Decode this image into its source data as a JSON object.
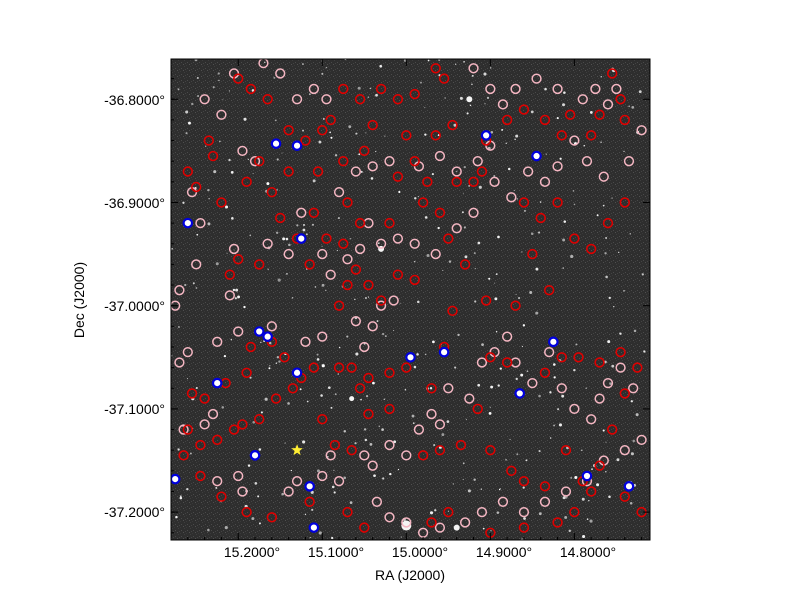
{
  "plot": {
    "x_axis_label": "RA (J2000)",
    "y_axis_label": "Dec (J2000)",
    "x_ticks": [
      {
        "value": 15.2,
        "label": "15.2000°"
      },
      {
        "value": 15.1,
        "label": "15.1000°"
      },
      {
        "value": 15.0,
        "label": "15.0000°"
      },
      {
        "value": 14.9,
        "label": "14.9000°"
      },
      {
        "value": 14.8,
        "label": "14.8000°"
      }
    ],
    "y_ticks": [
      {
        "value": -36.8,
        "label": "-36.8000°"
      },
      {
        "value": -36.9,
        "label": "-36.9000°"
      },
      {
        "value": -37.0,
        "label": "-37.0000°"
      },
      {
        "value": -37.1,
        "label": "-37.1000°"
      },
      {
        "value": -37.2,
        "label": "-37.2000°"
      }
    ],
    "x_range": [
      15.28,
      14.71
    ],
    "y_range": [
      -37.227,
      -36.761
    ]
  },
  "colors": {
    "sky_background": "#2b2b2b",
    "marker_red": "#dd0000",
    "marker_pink": "#f4b6c2",
    "marker_blue": "#0000dd",
    "marker_yellow": "#ffee33"
  },
  "markers": {
    "red": [
      [
        15.235,
        -36.84
      ],
      [
        15.23,
        -36.855
      ],
      [
        15.22,
        -36.9
      ],
      [
        15.25,
        -36.885
      ],
      [
        15.21,
        -36.97
      ],
      [
        15.19,
        -36.88
      ],
      [
        15.175,
        -36.86
      ],
      [
        15.16,
        -36.89
      ],
      [
        15.14,
        -36.87
      ],
      [
        15.13,
        -36.935
      ],
      [
        15.11,
        -36.91
      ],
      [
        15.115,
        -36.96
      ],
      [
        15.095,
        -36.935
      ],
      [
        15.075,
        -36.94
      ],
      [
        15.06,
        -36.965
      ],
      [
        15.07,
        -36.98
      ],
      [
        15.045,
        -36.98
      ],
      [
        15.08,
        -37.0
      ],
      [
        15.03,
        -36.995
      ],
      [
        15.01,
        -36.97
      ],
      [
        14.99,
        -36.975
      ],
      [
        15.055,
        -36.92
      ],
      [
        15.02,
        -36.92
      ],
      [
        14.98,
        -36.9
      ],
      [
        14.96,
        -36.91
      ],
      [
        14.94,
        -36.88
      ],
      [
        14.92,
        -36.88
      ],
      [
        14.91,
        -36.87
      ],
      [
        14.95,
        -36.935
      ],
      [
        14.93,
        -36.96
      ],
      [
        14.86,
        -36.9
      ],
      [
        14.84,
        -36.915
      ],
      [
        14.82,
        -36.9
      ],
      [
        14.8,
        -36.935
      ],
      [
        14.78,
        -36.945
      ],
      [
        14.76,
        -36.92
      ],
      [
        14.74,
        -36.9
      ],
      [
        14.85,
        -36.95
      ],
      [
        14.83,
        -36.985
      ],
      [
        14.905,
        -36.995
      ],
      [
        14.87,
        -37.0
      ],
      [
        14.945,
        -37.005
      ],
      [
        14.955,
        -37.04
      ],
      [
        14.97,
        -37.08
      ],
      [
        15.0,
        -37.06
      ],
      [
        15.02,
        -37.065
      ],
      [
        15.045,
        -37.07
      ],
      [
        15.055,
        -37.08
      ],
      [
        15.065,
        -37.06
      ],
      [
        15.08,
        -37.06
      ],
      [
        15.11,
        -37.06
      ],
      [
        15.125,
        -37.07
      ],
      [
        15.135,
        -37.08
      ],
      [
        15.155,
        -37.09
      ],
      [
        15.175,
        -37.11
      ],
      [
        15.195,
        -37.115
      ],
      [
        15.205,
        -37.12
      ],
      [
        15.225,
        -37.13
      ],
      [
        15.245,
        -37.135
      ],
      [
        15.26,
        -37.12
      ],
      [
        15.255,
        -37.085
      ],
      [
        15.24,
        -37.09
      ],
      [
        15.215,
        -37.075
      ],
      [
        15.19,
        -37.065
      ],
      [
        15.185,
        -37.04
      ],
      [
        15.16,
        -37.035
      ],
      [
        15.145,
        -37.05
      ],
      [
        15.1,
        -37.11
      ],
      [
        15.085,
        -37.135
      ],
      [
        15.065,
        -37.14
      ],
      [
        15.045,
        -37.105
      ],
      [
        15.02,
        -37.1
      ],
      [
        14.98,
        -37.145
      ],
      [
        14.96,
        -37.14
      ],
      [
        14.935,
        -37.135
      ],
      [
        14.915,
        -37.1
      ],
      [
        14.9,
        -37.14
      ],
      [
        14.875,
        -37.16
      ],
      [
        14.86,
        -37.17
      ],
      [
        14.835,
        -37.175
      ],
      [
        14.81,
        -37.14
      ],
      [
        14.79,
        -37.17
      ],
      [
        14.77,
        -37.155
      ],
      [
        14.755,
        -37.12
      ],
      [
        14.74,
        -37.085
      ],
      [
        14.725,
        -37.06
      ],
      [
        14.745,
        -37.045
      ],
      [
        14.77,
        -37.055
      ],
      [
        14.795,
        -37.05
      ],
      [
        14.815,
        -37.05
      ],
      [
        14.835,
        -37.065
      ],
      [
        14.88,
        -37.055
      ],
      [
        14.9,
        -37.05
      ],
      [
        14.72,
        -37.2
      ],
      [
        14.74,
        -37.185
      ],
      [
        14.78,
        -37.18
      ],
      [
        14.8,
        -37.2
      ],
      [
        14.82,
        -37.21
      ],
      [
        14.86,
        -37.215
      ],
      [
        14.9,
        -37.22
      ],
      [
        14.95,
        -37.2
      ],
      [
        14.97,
        -37.21
      ],
      [
        15.05,
        -37.215
      ],
      [
        15.07,
        -37.2
      ],
      [
        15.115,
        -37.19
      ],
      [
        15.16,
        -37.205
      ],
      [
        15.19,
        -37.2
      ],
      [
        15.22,
        -37.185
      ],
      [
        15.245,
        -37.165
      ],
      [
        15.265,
        -37.145
      ],
      [
        14.755,
        -36.775
      ],
      [
        14.74,
        -36.82
      ],
      [
        14.745,
        -36.8
      ],
      [
        14.77,
        -36.815
      ],
      [
        14.78,
        -36.835
      ],
      [
        14.805,
        -36.815
      ],
      [
        14.815,
        -36.835
      ],
      [
        14.835,
        -36.82
      ],
      [
        14.86,
        -36.81
      ],
      [
        14.88,
        -36.82
      ],
      [
        14.905,
        -36.84
      ],
      [
        14.945,
        -36.825
      ],
      [
        14.965,
        -36.835
      ],
      [
        15.0,
        -36.835
      ],
      [
        15.04,
        -36.825
      ],
      [
        15.055,
        -36.8
      ],
      [
        15.075,
        -36.79
      ],
      [
        15.09,
        -36.82
      ],
      [
        15.1,
        -36.83
      ],
      [
        15.12,
        -36.84
      ],
      [
        15.14,
        -36.83
      ],
      [
        15.165,
        -36.8
      ],
      [
        15.185,
        -36.79
      ],
      [
        15.2,
        -36.78
      ],
      [
        15.03,
        -36.79
      ],
      [
        15.01,
        -36.8
      ],
      [
        14.99,
        -36.795
      ],
      [
        14.965,
        -36.77
      ],
      [
        14.955,
        -36.78
      ],
      [
        15.105,
        -36.87
      ],
      [
        15.075,
        -36.86
      ],
      [
        15.05,
        -36.85
      ],
      [
        15.07,
        -36.9
      ],
      [
        15.01,
        -36.875
      ],
      [
        14.99,
        -36.86
      ],
      [
        14.975,
        -36.88
      ],
      [
        15.15,
        -36.915
      ],
      [
        15.175,
        -36.96
      ],
      [
        15.2,
        -36.955
      ],
      [
        15.26,
        -36.87
      ]
    ],
    "pink": [
      [
        15.24,
        -36.8
      ],
      [
        15.205,
        -36.775
      ],
      [
        15.22,
        -36.815
      ],
      [
        15.195,
        -36.85
      ],
      [
        15.18,
        -36.86
      ],
      [
        15.255,
        -36.89
      ],
      [
        15.245,
        -36.92
      ],
      [
        15.25,
        -36.96
      ],
      [
        15.205,
        -36.945
      ],
      [
        15.21,
        -36.99
      ],
      [
        15.165,
        -36.94
      ],
      [
        15.14,
        -36.95
      ],
      [
        15.125,
        -36.91
      ],
      [
        15.1,
        -36.95
      ],
      [
        15.09,
        -36.97
      ],
      [
        15.07,
        -36.955
      ],
      [
        15.055,
        -36.945
      ],
      [
        15.045,
        -36.92
      ],
      [
        15.04,
        -37.02
      ],
      [
        15.03,
        -37.0
      ],
      [
        15.015,
        -36.995
      ],
      [
        15.06,
        -37.015
      ],
      [
        15.05,
        -37.04
      ],
      [
        15.1,
        -37.03
      ],
      [
        15.12,
        -37.035
      ],
      [
        15.16,
        -37.02
      ],
      [
        15.2,
        -37.025
      ],
      [
        15.225,
        -37.035
      ],
      [
        15.26,
        -37.045
      ],
      [
        15.27,
        -37.055
      ],
      [
        15.275,
        -37.0
      ],
      [
        15.27,
        -36.985
      ],
      [
        15.265,
        -37.12
      ],
      [
        15.24,
        -37.115
      ],
      [
        15.23,
        -37.105
      ],
      [
        15.225,
        -37.17
      ],
      [
        15.2,
        -37.165
      ],
      [
        15.195,
        -37.18
      ],
      [
        15.14,
        -37.18
      ],
      [
        15.13,
        -37.17
      ],
      [
        15.1,
        -37.165
      ],
      [
        15.09,
        -37.145
      ],
      [
        15.08,
        -37.17
      ],
      [
        15.05,
        -37.145
      ],
      [
        15.04,
        -37.155
      ],
      [
        15.02,
        -37.135
      ],
      [
        15.0,
        -37.145
      ],
      [
        14.985,
        -37.12
      ],
      [
        14.97,
        -37.105
      ],
      [
        14.96,
        -37.115
      ],
      [
        14.95,
        -37.08
      ],
      [
        14.925,
        -37.09
      ],
      [
        14.91,
        -37.055
      ],
      [
        14.895,
        -37.045
      ],
      [
        14.88,
        -37.03
      ],
      [
        14.87,
        -37.055
      ],
      [
        14.85,
        -37.075
      ],
      [
        14.83,
        -37.045
      ],
      [
        14.815,
        -37.08
      ],
      [
        14.8,
        -37.1
      ],
      [
        14.78,
        -37.11
      ],
      [
        14.77,
        -37.09
      ],
      [
        14.76,
        -37.075
      ],
      [
        14.745,
        -37.06
      ],
      [
        14.73,
        -37.08
      ],
      [
        14.72,
        -37.13
      ],
      [
        14.74,
        -37.14
      ],
      [
        14.765,
        -37.15
      ],
      [
        14.785,
        -37.17
      ],
      [
        14.81,
        -37.18
      ],
      [
        14.835,
        -37.19
      ],
      [
        14.86,
        -37.2
      ],
      [
        14.885,
        -37.19
      ],
      [
        14.91,
        -37.2
      ],
      [
        14.93,
        -37.21
      ],
      [
        14.96,
        -37.215
      ],
      [
        14.98,
        -37.22
      ],
      [
        15.0,
        -37.21
      ],
      [
        15.02,
        -37.205
      ],
      [
        15.035,
        -37.19
      ],
      [
        14.75,
        -36.79
      ],
      [
        14.72,
        -36.83
      ],
      [
        14.735,
        -36.86
      ],
      [
        14.765,
        -36.875
      ],
      [
        14.785,
        -36.86
      ],
      [
        14.8,
        -36.84
      ],
      [
        14.82,
        -36.865
      ],
      [
        14.835,
        -36.88
      ],
      [
        14.855,
        -36.87
      ],
      [
        14.875,
        -36.895
      ],
      [
        14.895,
        -36.88
      ],
      [
        14.92,
        -36.91
      ],
      [
        14.94,
        -36.925
      ],
      [
        14.965,
        -36.95
      ],
      [
        14.99,
        -36.94
      ],
      [
        15.01,
        -36.935
      ],
      [
        15.03,
        -36.94
      ],
      [
        14.985,
        -36.865
      ],
      [
        14.96,
        -36.855
      ],
      [
        14.94,
        -36.87
      ],
      [
        14.915,
        -36.86
      ],
      [
        14.9,
        -36.845
      ],
      [
        15.02,
        -36.86
      ],
      [
        15.04,
        -36.865
      ],
      [
        15.06,
        -36.87
      ],
      [
        15.08,
        -36.89
      ],
      [
        15.095,
        -36.8
      ],
      [
        15.11,
        -36.79
      ],
      [
        15.13,
        -36.8
      ],
      [
        15.15,
        -36.775
      ],
      [
        15.17,
        -36.765
      ],
      [
        14.92,
        -36.77
      ],
      [
        14.9,
        -36.79
      ],
      [
        14.885,
        -36.805
      ],
      [
        14.87,
        -36.79
      ],
      [
        14.845,
        -36.78
      ],
      [
        14.82,
        -36.79
      ],
      [
        14.79,
        -36.8
      ],
      [
        14.775,
        -36.79
      ],
      [
        14.76,
        -36.805
      ]
    ],
    "blue": [
      [
        15.155,
        -36.843
      ],
      [
        15.13,
        -36.845
      ],
      [
        15.26,
        -36.92
      ],
      [
        15.125,
        -36.935
      ],
      [
        14.905,
        -36.835
      ],
      [
        14.845,
        -36.855
      ],
      [
        15.175,
        -37.025
      ],
      [
        15.165,
        -37.03
      ],
      [
        14.995,
        -37.05
      ],
      [
        14.955,
        -37.045
      ],
      [
        14.825,
        -37.035
      ],
      [
        14.865,
        -37.085
      ],
      [
        15.225,
        -37.075
      ],
      [
        15.18,
        -37.145
      ],
      [
        15.115,
        -37.175
      ],
      [
        14.785,
        -37.165
      ],
      [
        14.735,
        -37.175
      ],
      [
        15.11,
        -37.215
      ],
      [
        15.275,
        -37.168
      ],
      [
        15.13,
        -37.065
      ]
    ],
    "yellow": [
      [
        15.13,
        -37.14
      ]
    ]
  }
}
